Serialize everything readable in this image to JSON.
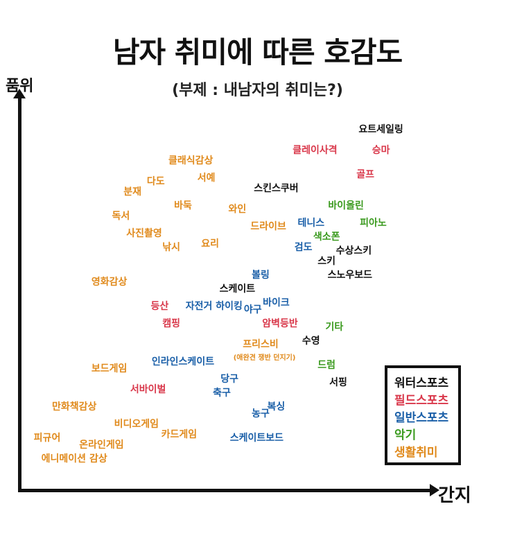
{
  "chart_data": {
    "type": "scatter",
    "title": "남자 취미에 따른 호감도",
    "subtitle": "(부제 : 내남자의 취미는?)",
    "xlabel": "간지",
    "ylabel": "품위",
    "xlim": [
      0,
      100
    ],
    "ylim": [
      0,
      100
    ],
    "legend": {
      "placement": "bottom-right",
      "entries": [
        {
          "name": "워터스포츠",
          "color": "#111111"
        },
        {
          "name": "필드스포츠",
          "color": "#d9374a"
        },
        {
          "name": "일반스포츠",
          "color": "#1a5fa8"
        },
        {
          "name": "악기",
          "color": "#3a9a1e"
        },
        {
          "name": "생활취미",
          "color": "#e08a1c"
        }
      ]
    },
    "points": [
      {
        "label": "요트세일링",
        "x": 91,
        "y": 97,
        "category": 0
      },
      {
        "label": "클레이사격",
        "x": 74,
        "y": 91,
        "category": 1
      },
      {
        "label": "승마",
        "x": 91,
        "y": 91,
        "category": 1
      },
      {
        "label": "클래식감상",
        "x": 42,
        "y": 88,
        "category": 4
      },
      {
        "label": "서예",
        "x": 46,
        "y": 83,
        "category": 4
      },
      {
        "label": "다도",
        "x": 33,
        "y": 82,
        "category": 4
      },
      {
        "label": "골프",
        "x": 87,
        "y": 84,
        "category": 1
      },
      {
        "label": "스킨스쿠버",
        "x": 64,
        "y": 80,
        "category": 0
      },
      {
        "label": "분재",
        "x": 27,
        "y": 79,
        "category": 4
      },
      {
        "label": "바둑",
        "x": 40,
        "y": 75,
        "category": 4
      },
      {
        "label": "바이올린",
        "x": 82,
        "y": 75,
        "category": 3
      },
      {
        "label": "와인",
        "x": 54,
        "y": 74,
        "category": 4
      },
      {
        "label": "독서",
        "x": 24,
        "y": 72,
        "category": 4
      },
      {
        "label": "테니스",
        "x": 73,
        "y": 70,
        "category": 2
      },
      {
        "label": "피아노",
        "x": 89,
        "y": 70,
        "category": 3
      },
      {
        "label": "드라이브",
        "x": 62,
        "y": 69,
        "category": 4
      },
      {
        "label": "사진촬영",
        "x": 30,
        "y": 67,
        "category": 4
      },
      {
        "label": "색소폰",
        "x": 77,
        "y": 66,
        "category": 3
      },
      {
        "label": "요리",
        "x": 47,
        "y": 64,
        "category": 4
      },
      {
        "label": "검도",
        "x": 71,
        "y": 63,
        "category": 2
      },
      {
        "label": "낚시",
        "x": 37,
        "y": 63,
        "category": 4
      },
      {
        "label": "수상스키",
        "x": 84,
        "y": 62,
        "category": 0
      },
      {
        "label": "스키",
        "x": 77,
        "y": 59,
        "category": 0
      },
      {
        "label": "스노우보드",
        "x": 83,
        "y": 55,
        "category": 0
      },
      {
        "label": "볼링",
        "x": 60,
        "y": 55,
        "category": 2
      },
      {
        "label": "영화감상",
        "x": 21,
        "y": 53,
        "category": 4
      },
      {
        "label": "스케이트",
        "x": 54,
        "y": 51,
        "category": 0
      },
      {
        "label": "바이크",
        "x": 64,
        "y": 47,
        "category": 2
      },
      {
        "label": "등산",
        "x": 34,
        "y": 46,
        "category": 1
      },
      {
        "label": "자전거 하이킹",
        "x": 48,
        "y": 46,
        "category": 2
      },
      {
        "label": "야구",
        "x": 58,
        "y": 45,
        "category": 2
      },
      {
        "label": "캠핑",
        "x": 37,
        "y": 41,
        "category": 1
      },
      {
        "label": "암벽등반",
        "x": 65,
        "y": 41,
        "category": 1
      },
      {
        "label": "기타",
        "x": 79,
        "y": 40,
        "category": 3
      },
      {
        "label": "수영",
        "x": 73,
        "y": 36,
        "category": 0
      },
      {
        "label": "프리스비",
        "x": 60,
        "y": 35,
        "category": 4
      },
      {
        "label": "(애완견 쟁반 던지기)",
        "x": 61,
        "y": 31,
        "category": 4,
        "small": true
      },
      {
        "label": "인라인스케이트",
        "x": 40,
        "y": 30,
        "category": 2
      },
      {
        "label": "드럼",
        "x": 77,
        "y": 29,
        "category": 3
      },
      {
        "label": "보드게임",
        "x": 21,
        "y": 28,
        "category": 4
      },
      {
        "label": "당구",
        "x": 52,
        "y": 25,
        "category": 2
      },
      {
        "label": "서핑",
        "x": 80,
        "y": 24,
        "category": 0
      },
      {
        "label": "서바이벌",
        "x": 31,
        "y": 22,
        "category": 1
      },
      {
        "label": "축구",
        "x": 50,
        "y": 21,
        "category": 2
      },
      {
        "label": "만화책감상",
        "x": 12,
        "y": 17,
        "category": 4
      },
      {
        "label": "복싱",
        "x": 64,
        "y": 17,
        "category": 2
      },
      {
        "label": "농구",
        "x": 60,
        "y": 15,
        "category": 2
      },
      {
        "label": "비디오게임",
        "x": 28,
        "y": 12,
        "category": 4
      },
      {
        "label": "카드게임",
        "x": 39,
        "y": 9,
        "category": 4
      },
      {
        "label": "스케이트보드",
        "x": 59,
        "y": 8,
        "category": 2
      },
      {
        "label": "피규어",
        "x": 5,
        "y": 8,
        "category": 4
      },
      {
        "label": "온라인게임",
        "x": 19,
        "y": 6,
        "category": 4
      },
      {
        "label": "에니메이션 감상",
        "x": 12,
        "y": 2,
        "category": 4
      }
    ]
  }
}
